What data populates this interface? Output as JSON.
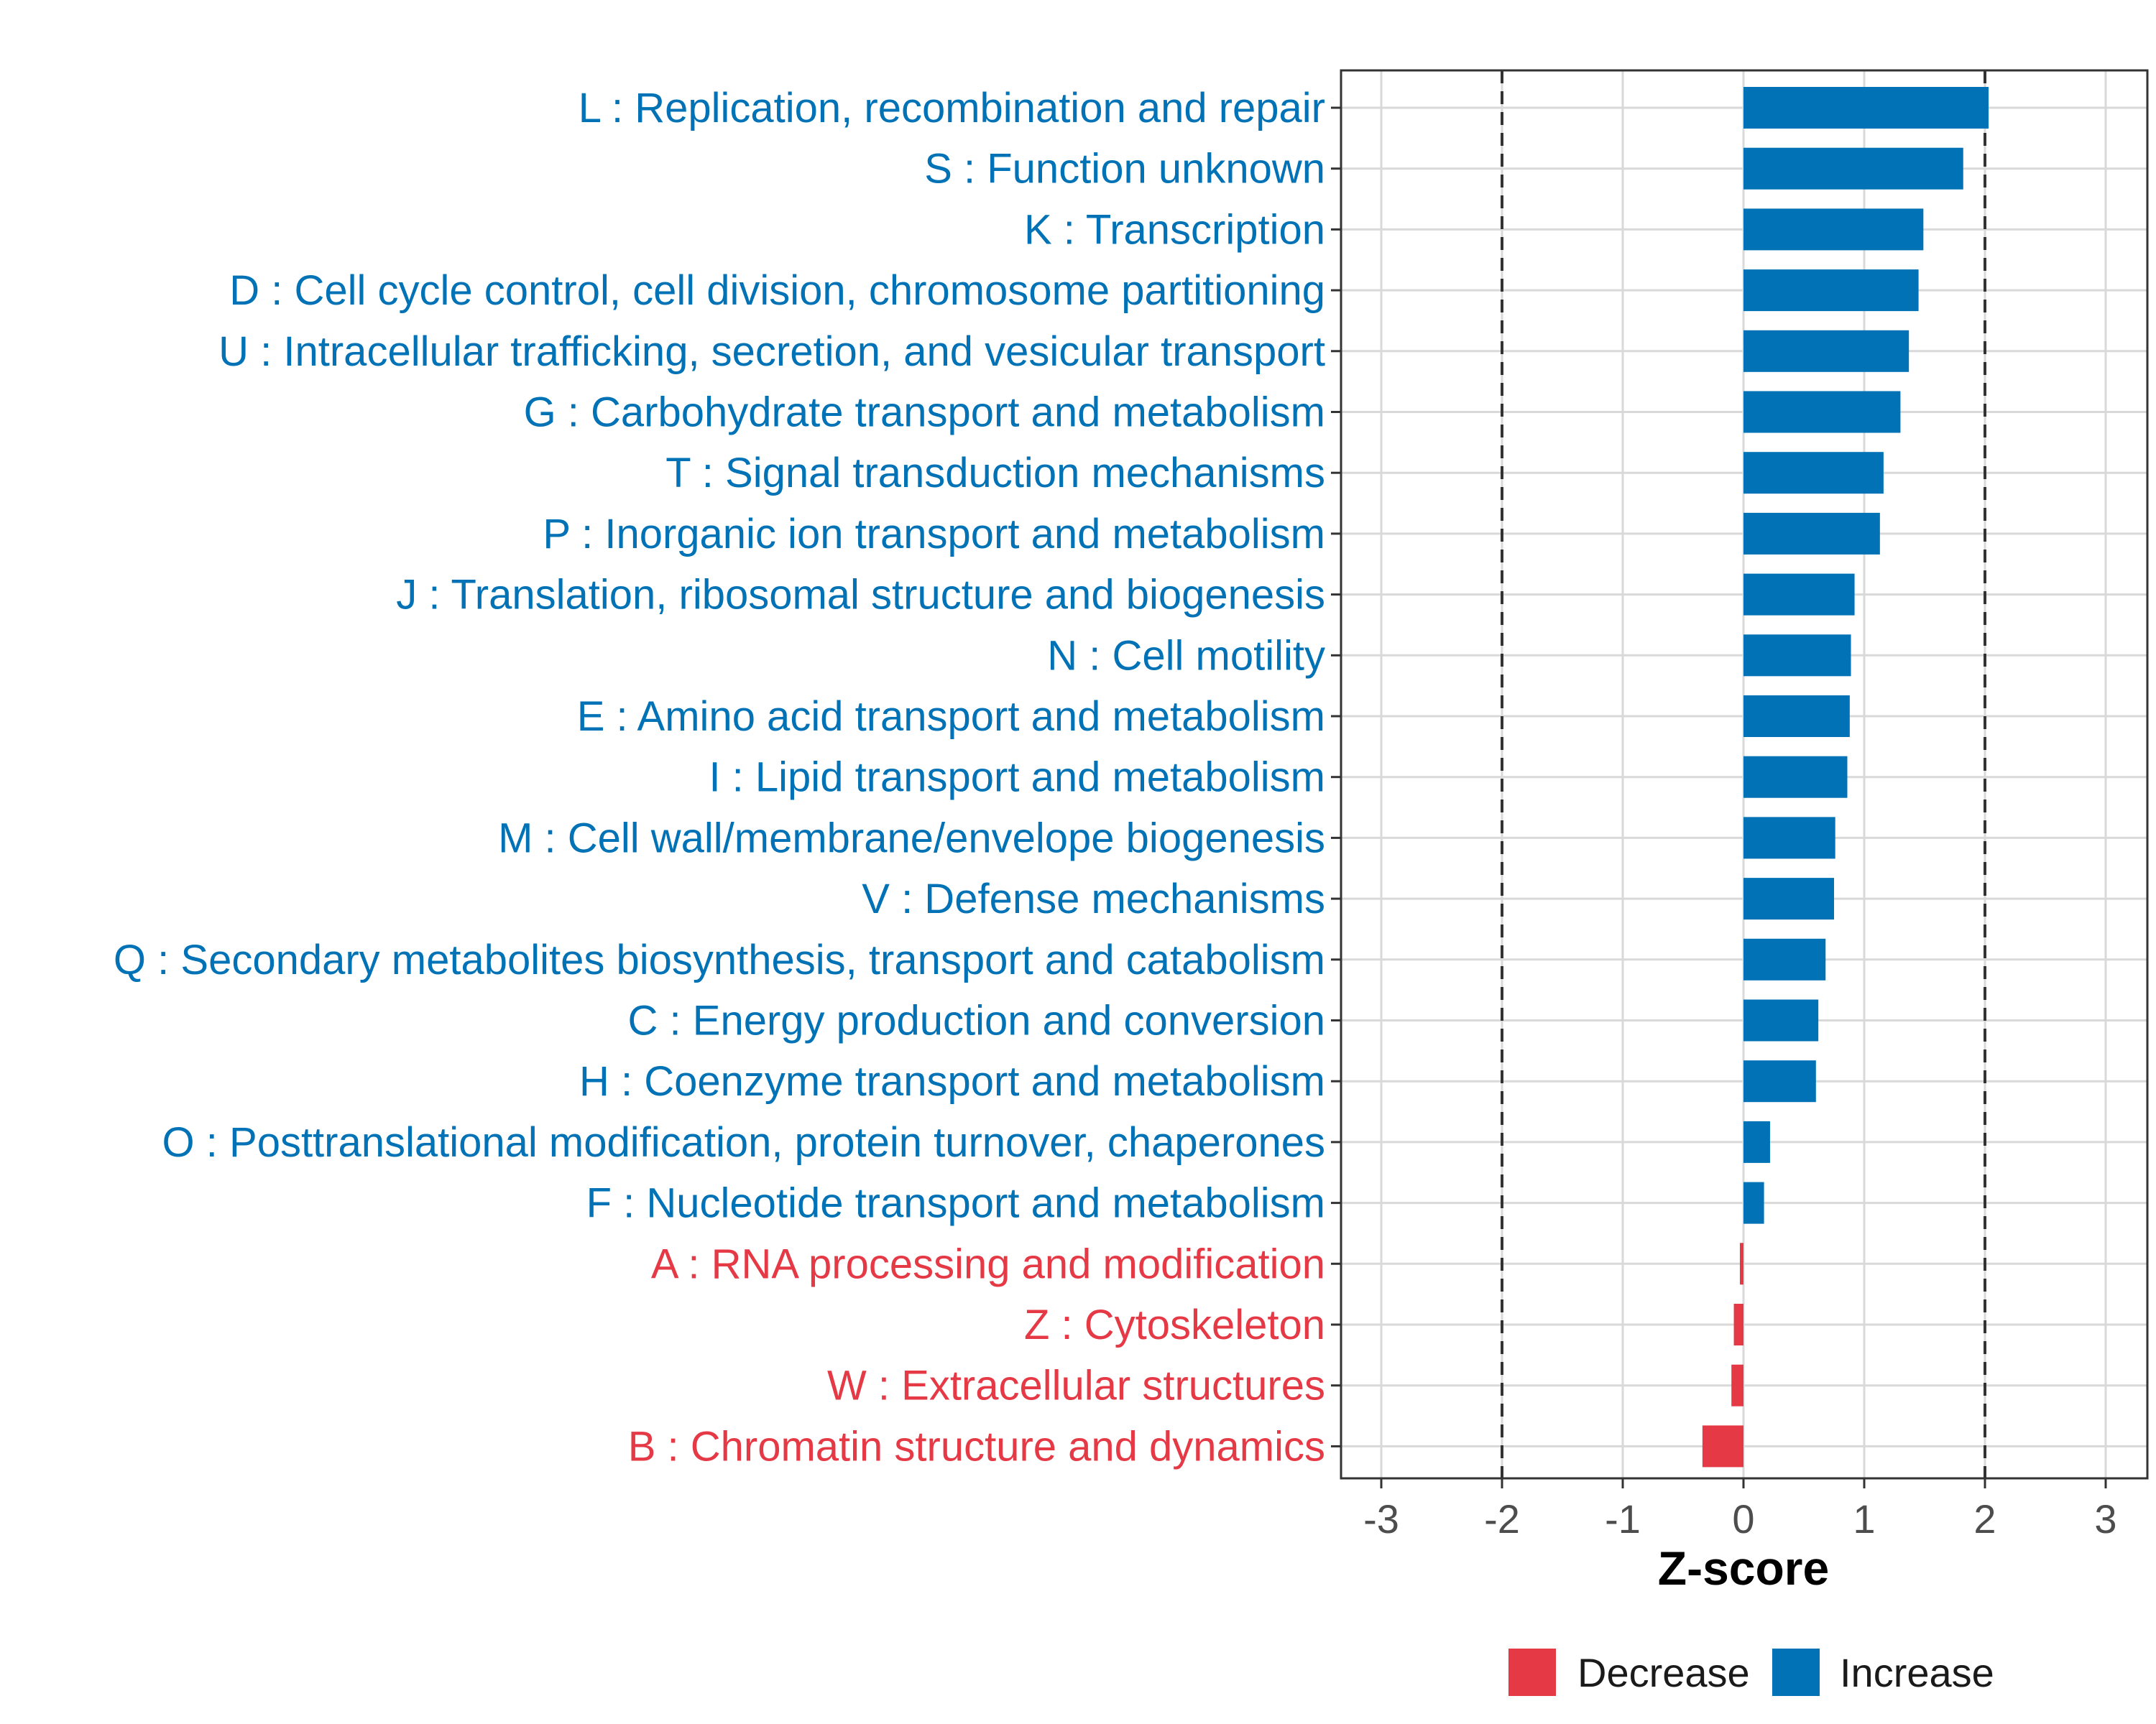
{
  "chart_data": {
    "type": "bar",
    "orientation": "horizontal",
    "xlabel": "Z-score",
    "xlim": [
      -3.3,
      3.3
    ],
    "xticks": [
      -3,
      -2,
      -1,
      0,
      1,
      2,
      3
    ],
    "xtick_labels": [
      "-3",
      "-2",
      "-1",
      "0",
      "1",
      "2",
      "3"
    ],
    "reference_lines": [
      -2,
      2
    ],
    "grid": true,
    "legend_position": "bottom",
    "colors": {
      "Increase": "#0072b5",
      "Decrease": "#e63946"
    },
    "legend": [
      {
        "label": "Decrease",
        "color": "#e63946"
      },
      {
        "label": "Increase",
        "color": "#0072b5"
      }
    ],
    "categories": [
      "L : Replication, recombination and repair",
      "S : Function unknown",
      "K : Transcription",
      "D : Cell cycle control, cell division, chromosome partitioning",
      "U : Intracellular trafficking, secretion, and vesicular transport",
      "G : Carbohydrate transport and metabolism",
      "T : Signal transduction mechanisms",
      "P : Inorganic ion transport and metabolism",
      "J : Translation, ribosomal structure and biogenesis",
      "N : Cell motility",
      "E : Amino acid transport and metabolism",
      "I : Lipid transport and metabolism",
      "M : Cell wall/membrane/envelope biogenesis",
      "V : Defense mechanisms",
      "Q : Secondary metabolites biosynthesis, transport and catabolism",
      "C : Energy production and conversion",
      "H : Coenzyme transport and metabolism",
      "O : Posttranslational modification, protein turnover, chaperones",
      "F : Nucleotide transport and metabolism",
      "A : RNA processing and modification",
      "Z : Cytoskeleton",
      "W : Extracellular structures",
      "B : Chromatin structure and dynamics"
    ],
    "values": [
      2.03,
      1.82,
      1.49,
      1.45,
      1.37,
      1.3,
      1.16,
      1.13,
      0.92,
      0.89,
      0.88,
      0.86,
      0.76,
      0.75,
      0.68,
      0.62,
      0.6,
      0.22,
      0.17,
      -0.03,
      -0.08,
      -0.1,
      -0.34
    ],
    "groups": [
      "Increase",
      "Increase",
      "Increase",
      "Increase",
      "Increase",
      "Increase",
      "Increase",
      "Increase",
      "Increase",
      "Increase",
      "Increase",
      "Increase",
      "Increase",
      "Increase",
      "Increase",
      "Increase",
      "Increase",
      "Increase",
      "Increase",
      "Decrease",
      "Decrease",
      "Decrease",
      "Decrease"
    ]
  }
}
